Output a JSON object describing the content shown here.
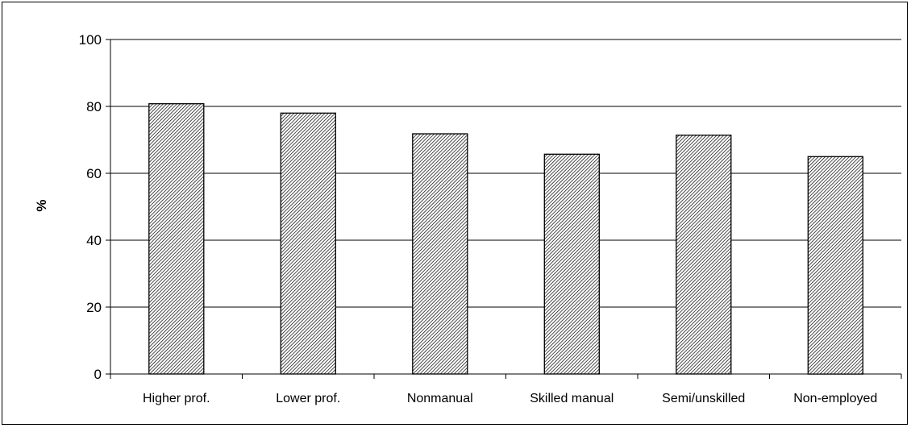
{
  "chart_data": {
    "type": "bar",
    "title": "",
    "xlabel": "",
    "ylabel": "%",
    "ylim": [
      0,
      100
    ],
    "yticks": [
      0,
      20,
      40,
      60,
      80,
      100
    ],
    "grid": true,
    "legend": "none",
    "categories": [
      "Higher prof.",
      "Lower prof.",
      "Nonmanual",
      "Skilled manual",
      "Semi/unskilled",
      "Non-employed"
    ],
    "values": [
      80.8,
      78.0,
      71.8,
      65.7,
      71.4,
      65.0
    ],
    "bar_fill": "hatched",
    "colors": {
      "bar_stroke": "#000000",
      "hatch_line": "#000000",
      "hatch_bg": "#ffffff",
      "grid": "#000000"
    }
  }
}
